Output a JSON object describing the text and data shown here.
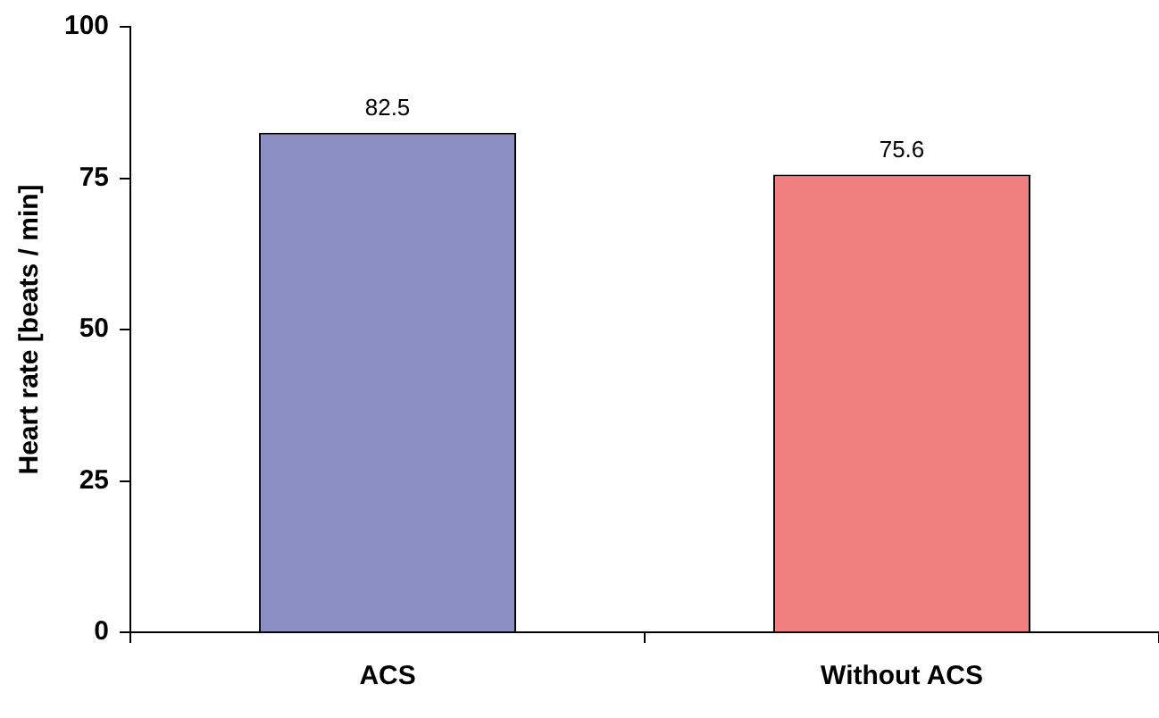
{
  "chart_data": {
    "type": "bar",
    "ylabel": "Heart rate [beats / min]",
    "categories": [
      "ACS",
      "Without ACS"
    ],
    "values": [
      82.5,
      75.6
    ],
    "colors": [
      "#8b8fc4",
      "#f08080"
    ],
    "ylim": [
      0,
      100
    ],
    "yticks": [
      0,
      25,
      50,
      75,
      100
    ],
    "grid": false,
    "legend": false,
    "data_labels": true
  }
}
